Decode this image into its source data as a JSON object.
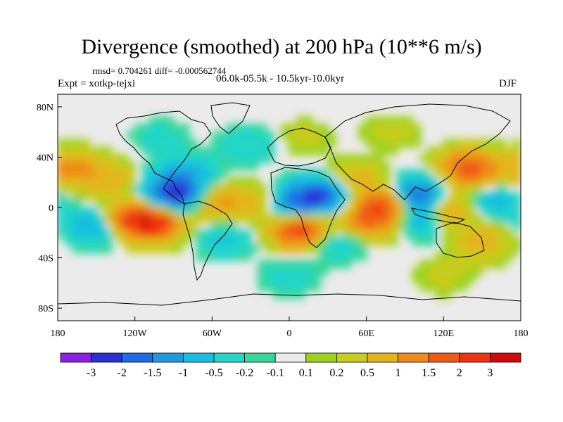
{
  "chart_data": {
    "type": "heatmap",
    "title": "Divergence (smoothed) at 200 hPa (10**6 m/s)",
    "stats_line": "rmsd= 0.704261 diff= -0.000562744",
    "experiment": "Expt = xotkp-tejxi",
    "period": "06.0k-05.5k - 10.5kyr-10.0kyr",
    "season": "DJF",
    "x_ticks": [
      {
        "lon": -180,
        "label": "180"
      },
      {
        "lon": -120,
        "label": "120W"
      },
      {
        "lon": -60,
        "label": "60W"
      },
      {
        "lon": 0,
        "label": "0"
      },
      {
        "lon": 60,
        "label": "60E"
      },
      {
        "lon": 120,
        "label": "120E"
      },
      {
        "lon": 180,
        "label": "180"
      }
    ],
    "y_ticks": [
      {
        "lat": 80,
        "label": "80N"
      },
      {
        "lat": 40,
        "label": "40N"
      },
      {
        "lat": 0,
        "label": "0"
      },
      {
        "lat": -40,
        "label": "40S"
      },
      {
        "lat": -80,
        "label": "80S"
      }
    ],
    "xlim": [
      -180,
      180
    ],
    "ylim": [
      -90,
      90
    ],
    "colorbar": {
      "labels": [
        "-3",
        "-2",
        "-1.5",
        "-1",
        "-0.5",
        "-0.2",
        "-0.1",
        "0.1",
        "0.2",
        "0.5",
        "1",
        "1.5",
        "2",
        "3"
      ],
      "colors": [
        "#8c1ee6",
        "#2a32d6",
        "#1f6ce8",
        "#1e9bdc",
        "#19bfe0",
        "#24d6c8",
        "#36d79a",
        "#eaeaea",
        "#9ed21a",
        "#c8cc1a",
        "#e3b51c",
        "#f08a18",
        "#f05a14",
        "#f0320f",
        "#d20a0a"
      ]
    },
    "features": [
      {
        "lon": -90,
        "lat": 8,
        "value": -2.5
      },
      {
        "lon": -150,
        "lat": -15,
        "value": -1.2
      },
      {
        "lon": -170,
        "lat": 30,
        "value": 1.2
      },
      {
        "lon": -140,
        "lat": 22,
        "value": 0.7
      },
      {
        "lon": -105,
        "lat": -12,
        "value": 2.6
      },
      {
        "lon": -125,
        "lat": -10,
        "value": 1.5
      },
      {
        "lon": -80,
        "lat": 25,
        "value": -1.0
      },
      {
        "lon": -55,
        "lat": 4,
        "value": 1.2
      },
      {
        "lon": -50,
        "lat": -25,
        "value": -0.6
      },
      {
        "lon": -20,
        "lat": 2,
        "value": 0.6
      },
      {
        "lon": 5,
        "lat": 0,
        "value": -1.6
      },
      {
        "lon": 10,
        "lat": -18,
        "value": 2.6
      },
      {
        "lon": 25,
        "lat": 10,
        "value": -1.8
      },
      {
        "lon": 50,
        "lat": 22,
        "value": 0.8
      },
      {
        "lon": 35,
        "lat": -25,
        "value": -1.0
      },
      {
        "lon": 60,
        "lat": -12,
        "value": 1.5
      },
      {
        "lon": 80,
        "lat": 2,
        "value": 2.2
      },
      {
        "lon": 100,
        "lat": 8,
        "value": -2.6
      },
      {
        "lon": 105,
        "lat": -8,
        "value": -1.5
      },
      {
        "lon": 118,
        "lat": -2,
        "value": 2.0
      },
      {
        "lon": 140,
        "lat": 30,
        "value": 2.0
      },
      {
        "lon": 160,
        "lat": 5,
        "value": -0.8
      },
      {
        "lon": 150,
        "lat": -28,
        "value": 0.8
      },
      {
        "lon": -30,
        "lat": 50,
        "value": -0.5
      },
      {
        "lon": 10,
        "lat": 55,
        "value": 0.3
      },
      {
        "lon": 80,
        "lat": 60,
        "value": 0.3
      },
      {
        "lon": -100,
        "lat": 55,
        "value": -0.3
      },
      {
        "lon": 0,
        "lat": -55,
        "value": -0.4
      },
      {
        "lon": 120,
        "lat": -55,
        "value": 0.3
      }
    ]
  }
}
